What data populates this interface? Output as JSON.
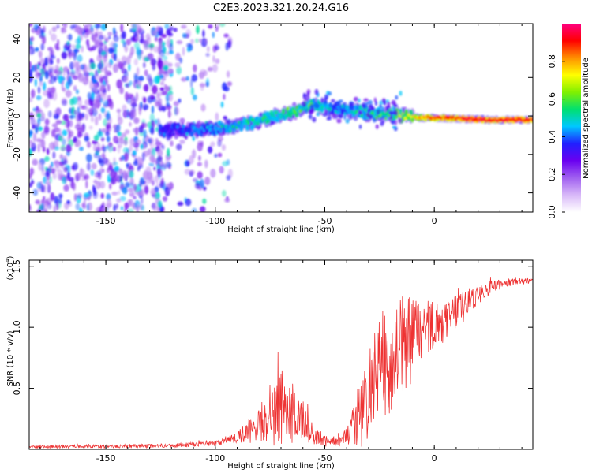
{
  "figure": {
    "title": "C2E3.2023.321.20.24.G16"
  },
  "chart_data": [
    {
      "type": "heatmap",
      "xlabel": "Height of straight line (km)",
      "ylabel": "Frequency (Hz)",
      "xlim": [
        -185,
        45
      ],
      "ylim": [
        -50,
        48
      ],
      "xticks": [
        -150,
        -100,
        -50,
        0
      ],
      "yticks": [
        -40,
        -20,
        0,
        20,
        40
      ],
      "grid": false,
      "colorbar": {
        "label": "Normalized spectral amplitude",
        "range": [
          0.0,
          1.0
        ],
        "ticks": [
          "0.0",
          "0.2",
          "0.4",
          "0.6",
          "0.8"
        ],
        "colormap": [
          "#ffffff",
          "#d8b8f8",
          "#a060f0",
          "#6a00f0",
          "#2020ff",
          "#00c8ff",
          "#00e070",
          "#80f000",
          "#ffff00",
          "#ff9000",
          "#ff0000",
          "#ff0080"
        ]
      },
      "noise_region": {
        "x_range": [
          -185,
          -105
        ],
        "amplitude": 0.25
      },
      "ridge": [
        {
          "x": -125,
          "f": -8,
          "a": 0.35
        },
        {
          "x": -115,
          "f": -7,
          "a": 0.4
        },
        {
          "x": -105,
          "f": -7,
          "a": 0.42
        },
        {
          "x": -95,
          "f": -6,
          "a": 0.48
        },
        {
          "x": -85,
          "f": -4,
          "a": 0.5
        },
        {
          "x": -75,
          "f": -1,
          "a": 0.55
        },
        {
          "x": -65,
          "f": 2,
          "a": 0.58
        },
        {
          "x": -55,
          "f": 6,
          "a": 0.55
        },
        {
          "x": -45,
          "f": 3,
          "a": 0.45
        },
        {
          "x": -35,
          "f": 2,
          "a": 0.5
        },
        {
          "x": -25,
          "f": 1,
          "a": 0.55
        },
        {
          "x": -15,
          "f": 0,
          "a": 0.65
        },
        {
          "x": -5,
          "f": -1,
          "a": 0.8
        },
        {
          "x": 5,
          "f": -1,
          "a": 0.85
        },
        {
          "x": 15,
          "f": -1.5,
          "a": 0.9
        },
        {
          "x": 25,
          "f": -2,
          "a": 0.9
        },
        {
          "x": 35,
          "f": -2,
          "a": 0.9
        },
        {
          "x": 45,
          "f": -2,
          "a": 0.9
        }
      ]
    },
    {
      "type": "line",
      "xlabel": "Height of straight line (km)",
      "ylabel": "SNR (10 * v/v)",
      "y_multiplier": "(x10",
      "y_multiplier_exp": "4",
      "xlim": [
        -185,
        45
      ],
      "ylim": [
        0,
        1.55
      ],
      "xticks": [
        -150,
        -100,
        -50,
        0
      ],
      "yticks": [
        "0.5",
        "1.0",
        "1.5"
      ],
      "grid": false,
      "color": "#ee3333",
      "envelope": [
        {
          "x": -185,
          "mean": 0.02,
          "spread": 0.01
        },
        {
          "x": -120,
          "mean": 0.03,
          "spread": 0.015
        },
        {
          "x": -100,
          "mean": 0.05,
          "spread": 0.02
        },
        {
          "x": -90,
          "mean": 0.1,
          "spread": 0.05
        },
        {
          "x": -80,
          "mean": 0.2,
          "spread": 0.12
        },
        {
          "x": -72,
          "mean": 0.35,
          "spread": 0.3
        },
        {
          "x": -62,
          "mean": 0.28,
          "spread": 0.18
        },
        {
          "x": -55,
          "mean": 0.12,
          "spread": 0.07
        },
        {
          "x": -48,
          "mean": 0.05,
          "spread": 0.03
        },
        {
          "x": -40,
          "mean": 0.1,
          "spread": 0.07
        },
        {
          "x": -32,
          "mean": 0.35,
          "spread": 0.3
        },
        {
          "x": -25,
          "mean": 0.65,
          "spread": 0.45
        },
        {
          "x": -15,
          "mean": 0.85,
          "spread": 0.4
        },
        {
          "x": -5,
          "mean": 1.0,
          "spread": 0.2
        },
        {
          "x": 5,
          "mean": 1.05,
          "spread": 0.15
        },
        {
          "x": 15,
          "mean": 1.2,
          "spread": 0.1
        },
        {
          "x": 25,
          "mean": 1.32,
          "spread": 0.05
        },
        {
          "x": 35,
          "mean": 1.37,
          "spread": 0.03
        },
        {
          "x": 45,
          "mean": 1.38,
          "spread": 0.02
        }
      ]
    }
  ]
}
